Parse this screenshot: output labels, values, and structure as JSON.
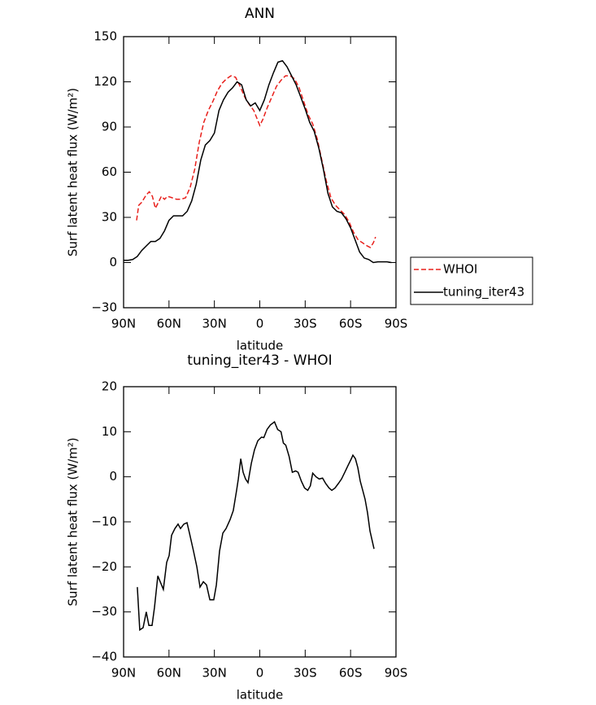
{
  "chart_data": [
    {
      "type": "line",
      "title": "ANN",
      "xlabel": "latitude",
      "ylabel": "Surf latent heat flux (W/m²)",
      "xlim": [
        90,
        -90
      ],
      "ylim": [
        -30,
        150
      ],
      "xticks": [
        {
          "value": 90,
          "label": "90N"
        },
        {
          "value": 60,
          "label": "60N"
        },
        {
          "value": 30,
          "label": "30N"
        },
        0,
        {
          "value": -30,
          "label": "30S"
        },
        {
          "value": -60,
          "label": "60S"
        },
        {
          "value": -90,
          "label": "90S"
        }
      ],
      "yticks": [
        {
          "value": -30,
          "label": "−30"
        },
        0,
        30,
        60,
        90,
        120,
        150
      ],
      "legend": "right",
      "series": [
        {
          "name": "WHOI",
          "color": "#e8201c",
          "dashed": true,
          "x": [
            81.4,
            80,
            78,
            75,
            73,
            71,
            69,
            67,
            65,
            63,
            61,
            58,
            55,
            52,
            49,
            46,
            43,
            40,
            37,
            34,
            31,
            28,
            25,
            22,
            19,
            16,
            13,
            10,
            7,
            4,
            2,
            0,
            -2,
            -5,
            -8,
            -11,
            -14,
            -17,
            -20,
            -23,
            -26,
            -29,
            -32,
            -35,
            -38,
            -41,
            -44,
            -47,
            -50,
            -53,
            -56,
            -59,
            -62,
            -65,
            -68,
            -71,
            -73,
            -75,
            -76.5
          ],
          "values": [
            28,
            38,
            40,
            45,
            47,
            44,
            36,
            40,
            44,
            42,
            44,
            43,
            42,
            42,
            43,
            50,
            62,
            80,
            93,
            101,
            107,
            114,
            119,
            122,
            124,
            123,
            117,
            110,
            105,
            101,
            96,
            91,
            95,
            103,
            110,
            117,
            121,
            124,
            124,
            122,
            116,
            107,
            98,
            92,
            82,
            68,
            54,
            43,
            38,
            35,
            32,
            27,
            20,
            15,
            13,
            11,
            10,
            13,
            17
          ]
        },
        {
          "name": "tuning_iter43",
          "color": "#000000",
          "dashed": false,
          "x": [
            90,
            87,
            84,
            81,
            78,
            75,
            72,
            69,
            66,
            63,
            60,
            57,
            54,
            51,
            48,
            45,
            42,
            39,
            36,
            33,
            30,
            27,
            24,
            21,
            18,
            15,
            12,
            9,
            6,
            3,
            0,
            -3,
            -6,
            -9,
            -12,
            -15,
            -18,
            -21,
            -24,
            -27,
            -30,
            -33,
            -36,
            -39,
            -42,
            -45,
            -48,
            -51,
            -54,
            -57,
            -60,
            -63,
            -66,
            -69,
            -72,
            -75,
            -78,
            -81,
            -84,
            -87
          ],
          "values": [
            1.5,
            1.5,
            2,
            4,
            8,
            11,
            14,
            14,
            16,
            21,
            28,
            31,
            31,
            31,
            34,
            41,
            52,
            68,
            78,
            81,
            86,
            101,
            108,
            113,
            116,
            120,
            118,
            108,
            104,
            106,
            101,
            108,
            118,
            126,
            133,
            134,
            130,
            124,
            118,
            110,
            102,
            93,
            87,
            76,
            62,
            46,
            37,
            34,
            33,
            29,
            23,
            15,
            7,
            3,
            2,
            0,
            0.5,
            0.5,
            0.5,
            0
          ]
        }
      ]
    },
    {
      "type": "line",
      "title": "tuning_iter43 - WHOI",
      "xlabel": "latitude",
      "ylabel": "Surf latent heat flux (W/m²)",
      "xlim": [
        90,
        -90
      ],
      "ylim": [
        -40,
        20
      ],
      "xticks": [
        {
          "value": 90,
          "label": "90N"
        },
        {
          "value": 60,
          "label": "60N"
        },
        {
          "value": 30,
          "label": "30N"
        },
        0,
        {
          "value": -30,
          "label": "30S"
        },
        {
          "value": -60,
          "label": "60S"
        },
        {
          "value": -90,
          "label": "90S"
        }
      ],
      "yticks": [
        {
          "value": -40,
          "label": "−40"
        },
        {
          "value": -30,
          "label": "−30"
        },
        {
          "value": -20,
          "label": "−20"
        },
        {
          "value": -10,
          "label": "−10"
        },
        0,
        10,
        20
      ],
      "series": [
        {
          "color": "#000000",
          "dashed": false,
          "x": [
            80.9,
            79.3,
            77.1,
            75,
            73.3,
            71.2,
            69.6,
            67.4,
            63.7,
            61.5,
            59.9,
            58.3,
            56.1,
            54,
            52.4,
            50.2,
            48.1,
            46.5,
            43.8,
            41.6,
            39.5,
            37.3,
            35.2,
            33,
            30.4,
            28.7,
            26.6,
            24.4,
            22.3,
            19.6,
            17.5,
            15.3,
            14.2,
            12.6,
            11,
            9.4,
            7.8,
            5.6,
            3.5,
            1.3,
            -1.1,
            -2.7,
            -4.8,
            -7,
            -9.7,
            -11.8,
            -14,
            -15.6,
            -17.2,
            -19.4,
            -21.5,
            -23.7,
            -25.3,
            -27.5,
            -29.6,
            -31.7,
            -33.4,
            -35,
            -37.2,
            -39.3,
            -41.5,
            -43.6,
            -45.8,
            -47.6,
            -49.7,
            -51.9,
            -54,
            -56.2,
            -58.3,
            -60.5,
            -61.5,
            -63.2,
            -64.8,
            -66.4,
            -68,
            -69.6,
            -71.2,
            -72.8,
            -75.5
          ],
          "values": [
            -24.5,
            -34,
            -33.5,
            -30,
            -33,
            -33,
            -29,
            -22,
            -25,
            -19,
            -17.5,
            -13,
            -11.5,
            -10.5,
            -11.5,
            -10.5,
            -10.2,
            -12.5,
            -16.5,
            -20,
            -24.5,
            -23.3,
            -24,
            -27.3,
            -27.3,
            -24,
            -16.5,
            -12.5,
            -11.5,
            -9.5,
            -7.5,
            -3,
            -0.5,
            4,
            1,
            -0.5,
            -1.3,
            3,
            6,
            8,
            8.8,
            8.7,
            10.5,
            11.5,
            12.2,
            10.5,
            10,
            7.5,
            7,
            4.5,
            1,
            1.3,
            1,
            -1,
            -2.5,
            -3,
            -2,
            0.8,
            0,
            -0.5,
            -0.3,
            -1.5,
            -2.5,
            -3,
            -2.5,
            -1.5,
            -0.5,
            1,
            2.5,
            4,
            4.8,
            4,
            2,
            -1,
            -3,
            -5,
            -8,
            -12,
            -16
          ]
        }
      ]
    }
  ]
}
